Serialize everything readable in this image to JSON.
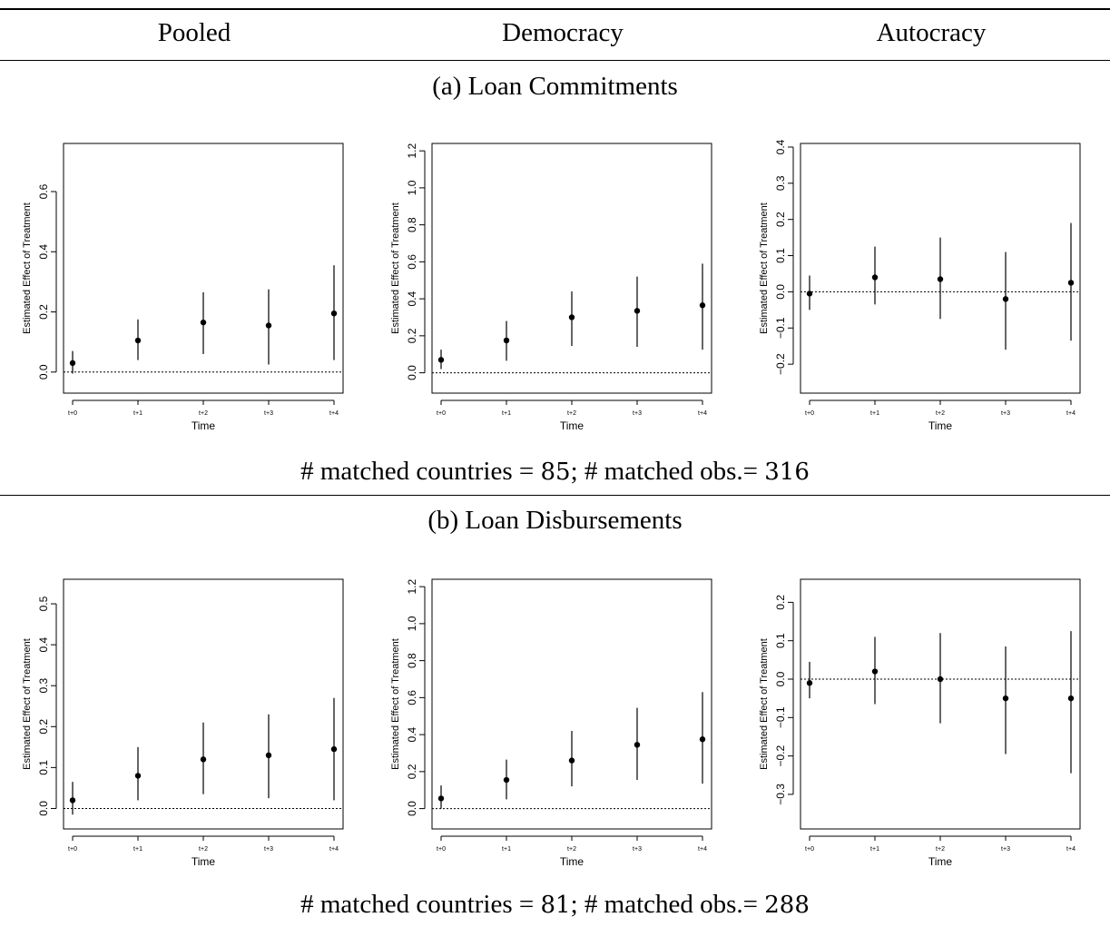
{
  "columns": [
    "Pooled",
    "Democracy",
    "Autocracy"
  ],
  "panels": [
    {
      "title": "(a) Loan Commitments",
      "matched": {
        "countries_label": "# matched countries = ",
        "countries": "85",
        "obs_label": "; # matched obs.= ",
        "obs": "316"
      }
    },
    {
      "title": "(b) Loan Disbursements",
      "matched": {
        "countries_label": "# matched countries = ",
        "countries": "81",
        "obs_label": "; # matched obs.= ",
        "obs": "288"
      }
    }
  ],
  "chart_data": [
    {
      "type": "scatter",
      "panel": "(a) Loan Commitments",
      "column": "Pooled",
      "xlabel": "Time",
      "ylabel": "Estimated Effect of Treatment",
      "categories": [
        "t+0",
        "t+1",
        "t+2",
        "t+3",
        "t+4"
      ],
      "values": [
        0.03,
        0.105,
        0.165,
        0.155,
        0.195
      ],
      "lower": [
        -0.005,
        0.04,
        0.06,
        0.025,
        0.04
      ],
      "upper": [
        0.07,
        0.175,
        0.265,
        0.275,
        0.355
      ],
      "ylim": [
        -0.07,
        0.76
      ],
      "yticks": [
        0,
        0.2,
        0.4,
        0.6
      ],
      "yticklabels": [
        "0.0",
        "0.2",
        "0.4",
        "0.6"
      ],
      "reference_line": 0
    },
    {
      "type": "scatter",
      "panel": "(a) Loan Commitments",
      "column": "Democracy",
      "xlabel": "Time",
      "ylabel": "Estimated Effect of Treatment",
      "categories": [
        "t+0",
        "t+1",
        "t+2",
        "t+3",
        "t+4"
      ],
      "values": [
        0.07,
        0.175,
        0.3,
        0.335,
        0.365
      ],
      "lower": [
        0.02,
        0.065,
        0.145,
        0.14,
        0.125
      ],
      "upper": [
        0.125,
        0.28,
        0.44,
        0.52,
        0.59
      ],
      "ylim": [
        -0.11,
        1.24
      ],
      "yticks": [
        0,
        0.2,
        0.4,
        0.6,
        0.8,
        1.0,
        1.2
      ],
      "yticklabels": [
        "0.0",
        "0.2",
        "0.4",
        "0.6",
        "0.8",
        "1.0",
        "1.2"
      ],
      "reference_line": 0
    },
    {
      "type": "scatter",
      "panel": "(a) Loan Commitments",
      "column": "Autocracy",
      "xlabel": "Time",
      "ylabel": "Estimated Effect of Treatment",
      "categories": [
        "t+0",
        "t+1",
        "t+2",
        "t+3",
        "t+4"
      ],
      "values": [
        -0.005,
        0.04,
        0.035,
        -0.02,
        0.025
      ],
      "lower": [
        -0.05,
        -0.035,
        -0.075,
        -0.16,
        -0.135
      ],
      "upper": [
        0.045,
        0.125,
        0.15,
        0.11,
        0.19
      ],
      "ylim": [
        -0.28,
        0.41
      ],
      "yticks": [
        -0.2,
        -0.1,
        0,
        0.1,
        0.2,
        0.3,
        0.4
      ],
      "yticklabels": [
        "−0.2",
        "−0.1",
        "0.0",
        "0.1",
        "0.2",
        "0.3",
        "0.4"
      ],
      "reference_line": 0
    },
    {
      "type": "scatter",
      "panel": "(b) Loan Disbursements",
      "column": "Pooled",
      "xlabel": "Time",
      "ylabel": "Estimated Effect of Treatment",
      "categories": [
        "t+0",
        "t+1",
        "t+2",
        "t+3",
        "t+4"
      ],
      "values": [
        0.02,
        0.08,
        0.12,
        0.13,
        0.145
      ],
      "lower": [
        -0.015,
        0.02,
        0.035,
        0.025,
        0.02
      ],
      "upper": [
        0.065,
        0.15,
        0.21,
        0.23,
        0.27
      ],
      "ylim": [
        -0.05,
        0.56
      ],
      "yticks": [
        0,
        0.1,
        0.2,
        0.3,
        0.4,
        0.5
      ],
      "yticklabels": [
        "0.0",
        "0.1",
        "0.2",
        "0.3",
        "0.4",
        "0.5"
      ],
      "reference_line": 0
    },
    {
      "type": "scatter",
      "panel": "(b) Loan Disbursements",
      "column": "Democracy",
      "xlabel": "Time",
      "ylabel": "Estimated Effect of Treatment",
      "categories": [
        "t+0",
        "t+1",
        "t+2",
        "t+3",
        "t+4"
      ],
      "values": [
        0.055,
        0.155,
        0.26,
        0.345,
        0.375
      ],
      "lower": [
        0.0,
        0.05,
        0.12,
        0.155,
        0.135
      ],
      "upper": [
        0.125,
        0.265,
        0.42,
        0.545,
        0.63
      ],
      "ylim": [
        -0.11,
        1.24
      ],
      "yticks": [
        0,
        0.2,
        0.4,
        0.6,
        0.8,
        1.0,
        1.2
      ],
      "yticklabels": [
        "0.0",
        "0.2",
        "0.4",
        "0.6",
        "0.8",
        "1.0",
        "1.2"
      ],
      "reference_line": 0
    },
    {
      "type": "scatter",
      "panel": "(b) Loan Disbursements",
      "column": "Autocracy",
      "xlabel": "Time",
      "ylabel": "Estimated Effect of Treatment",
      "categories": [
        "t+0",
        "t+1",
        "t+2",
        "t+3",
        "t+4"
      ],
      "values": [
        -0.01,
        0.02,
        0.0,
        -0.05,
        -0.05
      ],
      "lower": [
        -0.05,
        -0.065,
        -0.115,
        -0.195,
        -0.245
      ],
      "upper": [
        0.045,
        0.11,
        0.12,
        0.085,
        0.125
      ],
      "ylim": [
        -0.39,
        0.26
      ],
      "yticks": [
        -0.3,
        -0.2,
        -0.1,
        0,
        0.1,
        0.2
      ],
      "yticklabels": [
        "−0.3",
        "−0.2",
        "−0.1",
        "0.0",
        "0.1",
        "0.2"
      ],
      "reference_line": 0
    }
  ]
}
